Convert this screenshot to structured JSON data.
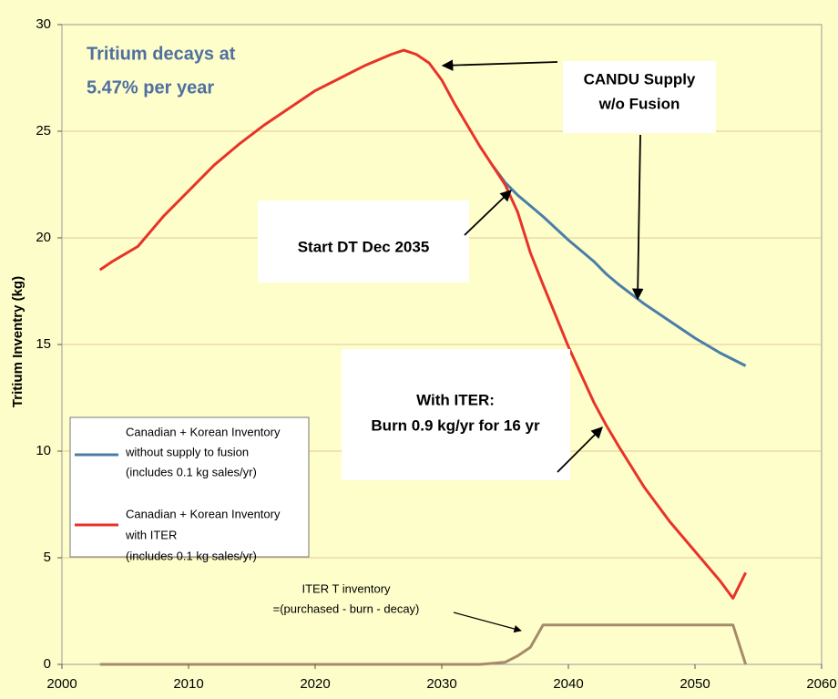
{
  "chart_data": {
    "type": "line",
    "y_label": "Tritium Inventry (kg)",
    "x": [
      2003,
      2004,
      2006,
      2008,
      2010,
      2012,
      2014,
      2016,
      2018,
      2020,
      2022,
      2024,
      2026,
      2027,
      2028,
      2029,
      2030,
      2031,
      2032,
      2033,
      2034,
      2035,
      2036,
      2037,
      2038,
      2040,
      2042,
      2043,
      2044,
      2046,
      2047,
      2048,
      2050,
      2052,
      2053,
      2054
    ],
    "series": [
      {
        "name": [
          "Canadian + Korean Inventory",
          "without  supply to fusion",
          "(includes 0.1 kg sales/yr)"
        ],
        "color": "#4a7ea8",
        "values": [
          null,
          null,
          null,
          null,
          null,
          null,
          null,
          null,
          null,
          null,
          null,
          null,
          null,
          null,
          null,
          null,
          null,
          null,
          null,
          null,
          23.4,
          22.6,
          22.0,
          21.5,
          21.0,
          19.9,
          18.9,
          18.3,
          17.8,
          16.9,
          16.5,
          16.1,
          15.3,
          14.6,
          14.3,
          14.0
        ]
      },
      {
        "name": [
          "Canadian + Korean Inventory",
          "with ITER",
          "(includes 0.1 kg sales/yr)"
        ],
        "color": "#e8332a",
        "values": [
          18.5,
          18.9,
          19.6,
          21.0,
          22.2,
          23.4,
          24.4,
          25.3,
          26.1,
          26.9,
          27.5,
          28.1,
          28.6,
          28.8,
          28.6,
          28.2,
          27.4,
          26.3,
          25.3,
          24.3,
          23.4,
          22.5,
          21.2,
          19.3,
          17.8,
          14.9,
          12.3,
          11.2,
          10.2,
          8.3,
          7.5,
          6.7,
          5.3,
          3.9,
          3.1,
          4.3
        ]
      },
      {
        "color": "#a68b6a",
        "values": [
          0,
          0,
          0,
          0,
          0,
          0,
          0,
          0,
          0,
          0,
          0,
          0,
          0,
          0,
          0,
          0,
          0,
          0,
          0,
          0,
          0.05,
          0.1,
          0.4,
          0.8,
          1.85,
          1.85,
          1.85,
          1.85,
          1.85,
          1.85,
          1.85,
          1.85,
          1.85,
          1.85,
          1.85,
          0
        ]
      }
    ],
    "xlim": [
      2000,
      2060
    ],
    "xticks": [
      2000,
      2010,
      2020,
      2030,
      2040,
      2050,
      2060
    ],
    "ylim": [
      0,
      30
    ],
    "yticks": [
      0,
      5,
      10,
      15,
      20,
      25,
      30
    ],
    "grid": true,
    "annotations": [
      {
        "lines": [
          "Tritium decays at",
          "5.47% per year"
        ]
      },
      {
        "lines": [
          "CANDU Supply",
          "w/o Fusion"
        ]
      },
      {
        "lines": [
          "Start DT Dec 2035"
        ]
      },
      {
        "lines": [
          "With ITER:",
          "Burn 0.9 kg/yr for 16 yr"
        ]
      },
      {
        "lines": [
          "ITER T inventory",
          "=(purchased - burn - decay)"
        ]
      }
    ]
  }
}
